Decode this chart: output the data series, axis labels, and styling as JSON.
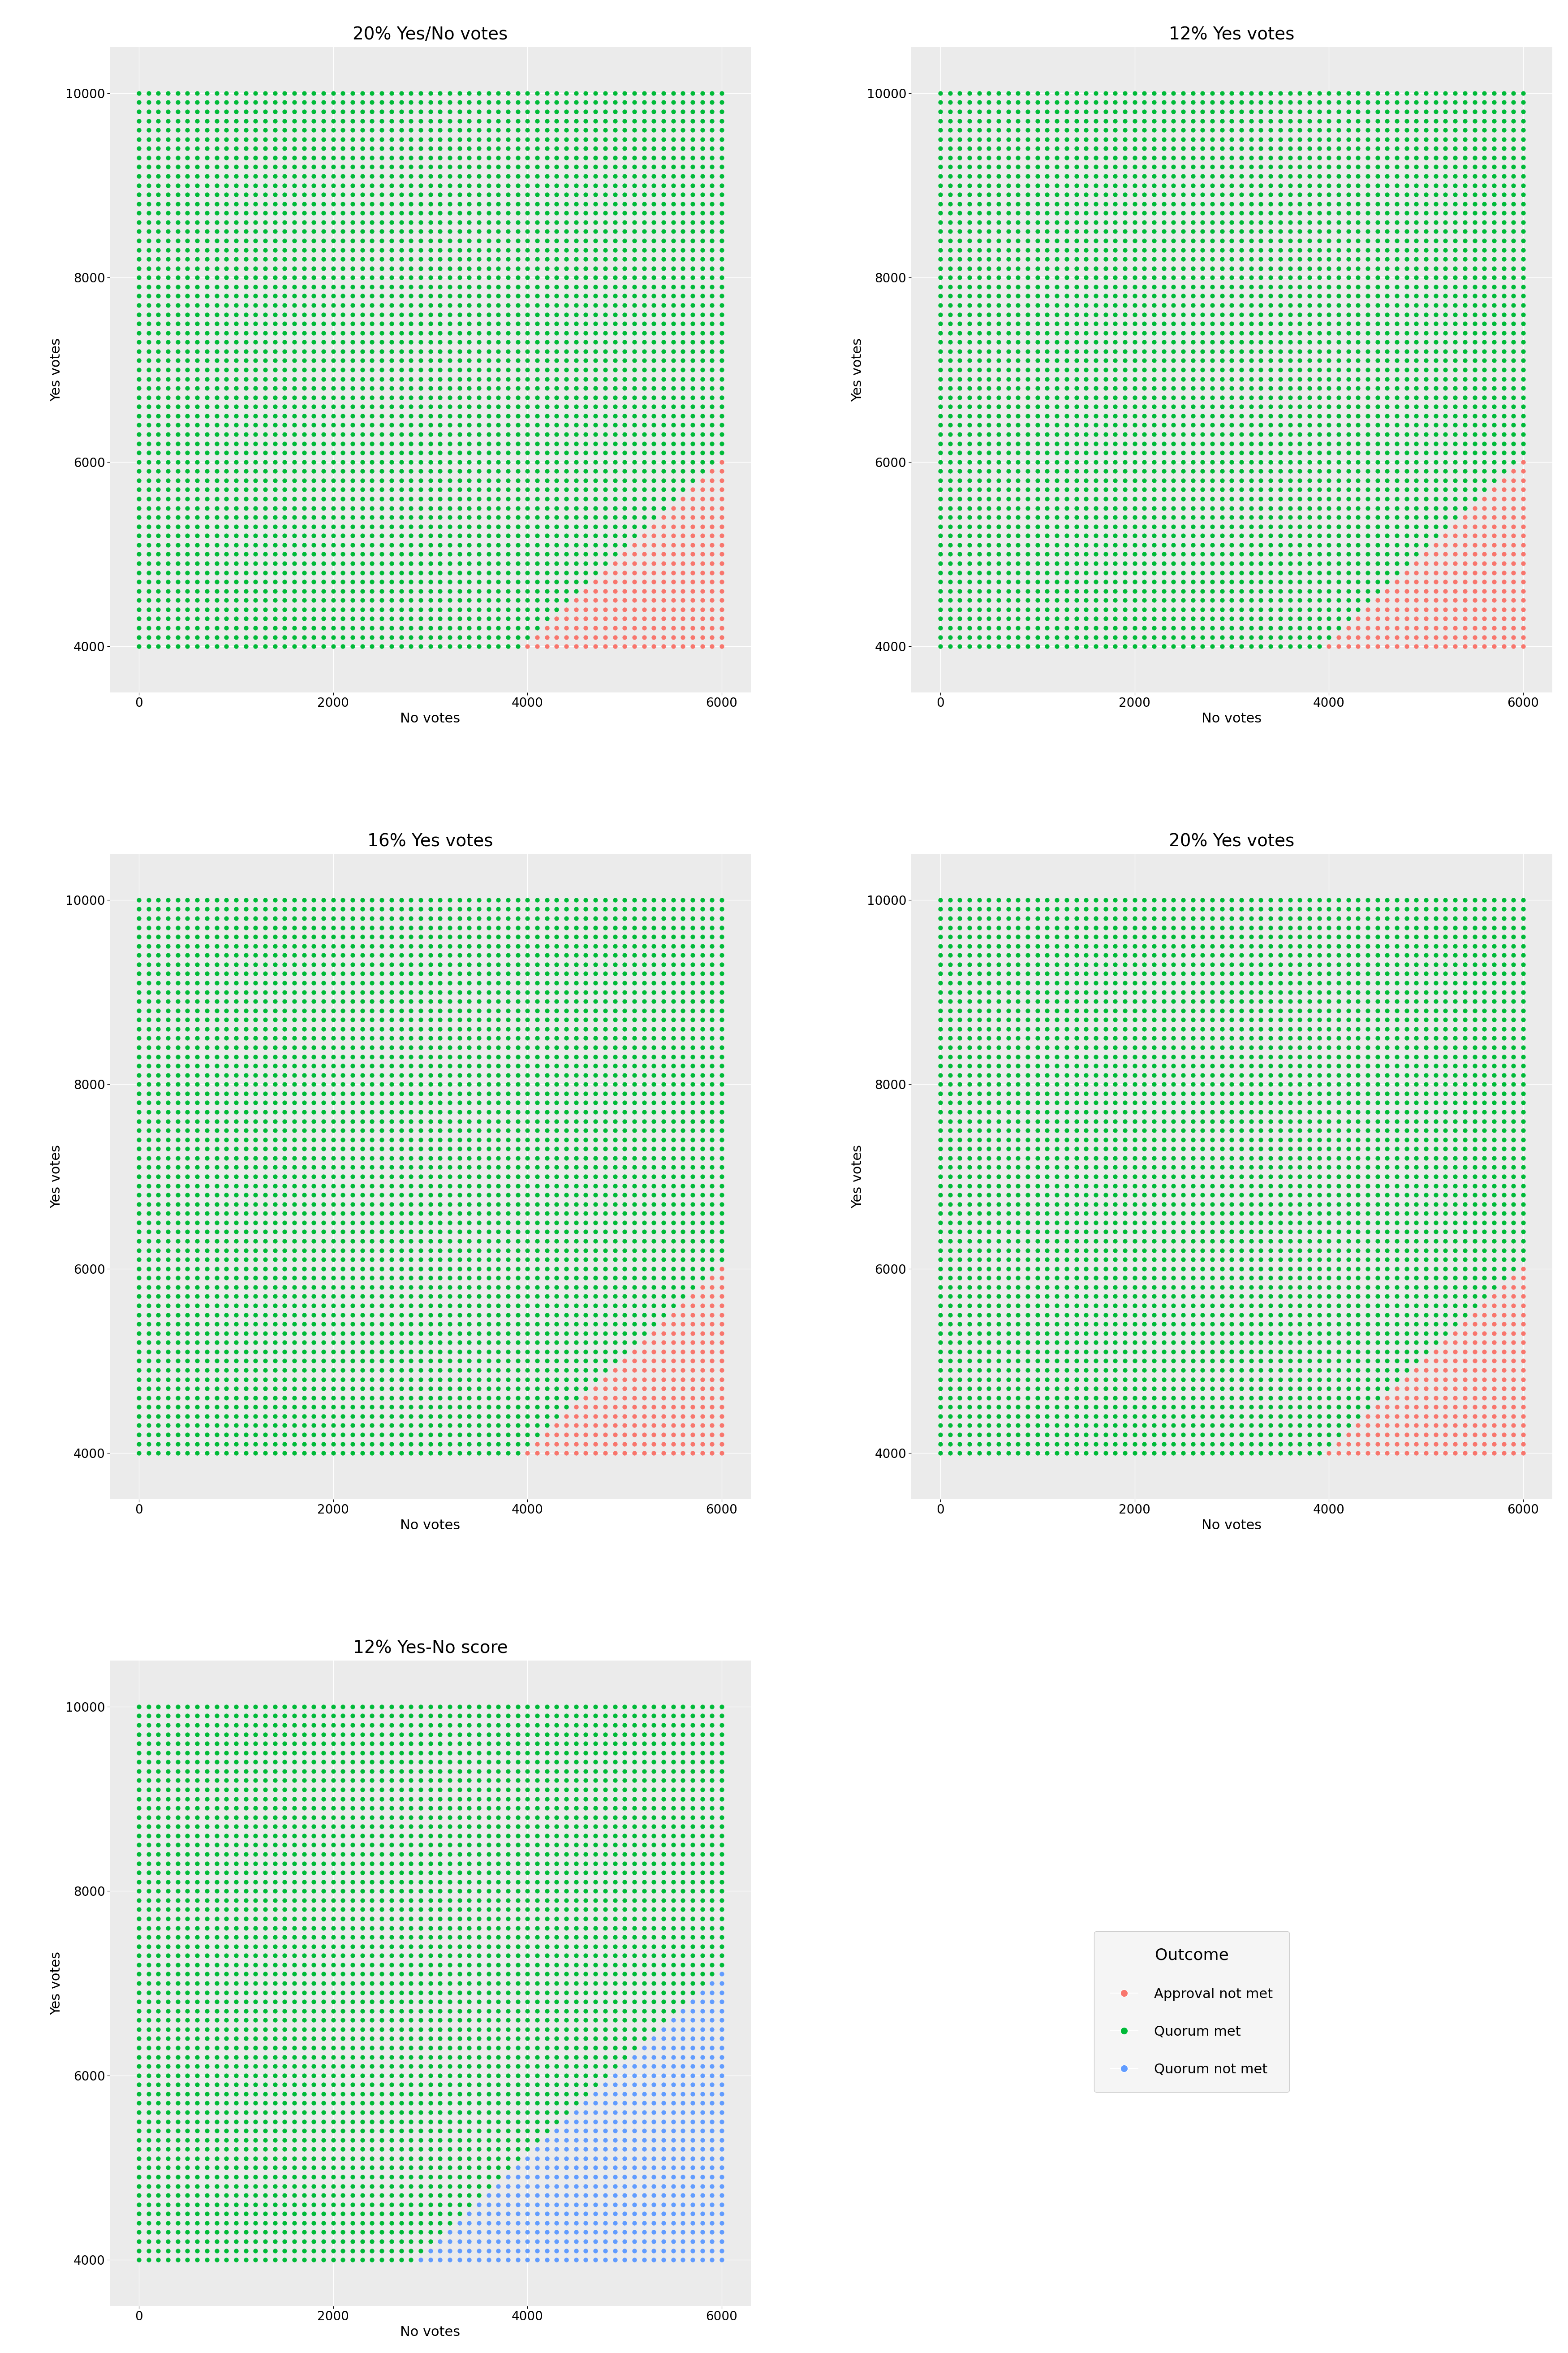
{
  "titles": [
    "20% Yes/No votes",
    "12% Yes votes",
    "16% Yes votes",
    "20% Yes votes",
    "12% Yes-No score"
  ],
  "total_tokens": 10000,
  "quorum_rules": [
    {
      "type": "yes_no_pct",
      "threshold": 0.2
    },
    {
      "type": "yes_pct",
      "threshold": 0.12
    },
    {
      "type": "yes_pct",
      "threshold": 0.16
    },
    {
      "type": "yes_pct",
      "threshold": 0.2
    },
    {
      "type": "yes_no_diff_pct",
      "threshold": 0.12
    }
  ],
  "x_range": [
    0,
    6000
  ],
  "y_range": [
    4000,
    10000
  ],
  "x_step": 100,
  "y_step": 100,
  "colors": {
    "approval_not_met": "#F8766D",
    "quorum_met": "#00BA38",
    "quorum_not_met": "#619CFF"
  },
  "xlabel": "No votes",
  "ylabel": "Yes votes",
  "legend_title": "Outcome",
  "legend_labels": [
    "Approval not met",
    "Quorum met",
    "Quorum not met"
  ],
  "background_color": "#FFFFFF",
  "panel_background": "#EBEBEB",
  "grid_color": "#FFFFFF",
  "dot_size": 55,
  "dot_alpha": 1.0,
  "title_fontsize": 28,
  "label_fontsize": 22,
  "tick_fontsize": 20,
  "legend_fontsize": 22,
  "legend_title_fontsize": 26
}
